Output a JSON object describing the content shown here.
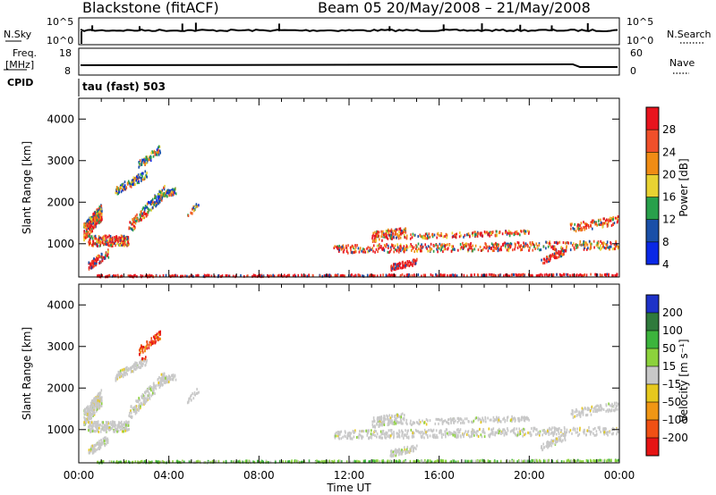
{
  "header": {
    "station": "Blackstone (fitACF)",
    "beam_and_dates": "Beam 05  20/May/2008 – 21/May/2008"
  },
  "nsky_panel": {
    "left_label": "N.Sky",
    "right_label": "N.Search",
    "left_ticks": [
      "10^5",
      "10^0"
    ],
    "right_ticks": [
      "10^5",
      "10^0"
    ]
  },
  "freq_panel": {
    "left_label_line1": "Freq.",
    "left_label_line2": "[MHz]",
    "cpid_label": "CPID",
    "right_label": "Nave",
    "left_ticks": [
      "18",
      "8"
    ],
    "right_ticks": [
      "60",
      "0"
    ]
  },
  "mode_label": "tau (fast) 503",
  "power_colorbar": {
    "title": "Power [dB]",
    "ticks": [
      "28",
      "24",
      "20",
      "16",
      "12",
      "8",
      "4"
    ],
    "colors": [
      "#e8141e",
      "#f0502a",
      "#f08c14",
      "#e8d232",
      "#28a04b",
      "#1a4fa8",
      "#0a28e6"
    ]
  },
  "velocity_colorbar": {
    "title": "Velocity [m s⁻¹]",
    "ticks": [
      "200",
      "100",
      "50",
      "15",
      "–15",
      "–50",
      "–100",
      "–200"
    ],
    "colors": [
      "#1e32c8",
      "#2f7a3c",
      "#3cb43c",
      "#8cd23c",
      "#c8c8c8",
      "#e6c81e",
      "#f09614",
      "#f05014",
      "#e61414"
    ]
  },
  "chart_data": [
    {
      "type": "heatmap",
      "title": "",
      "xlabel": "",
      "ylabel": "Slant Range [km]",
      "y_ticks": [
        "1000",
        "2000",
        "3000",
        "4000"
      ],
      "ylim": [
        200,
        4500
      ],
      "xlim_hours": [
        0,
        24
      ],
      "value_label": "Power [dB]"
    },
    {
      "type": "heatmap",
      "title": "",
      "xlabel": "Time UT",
      "ylabel": "Slant Range [km]",
      "x_ticks": [
        "00:00",
        "04:00",
        "08:00",
        "12:00",
        "16:00",
        "20:00",
        "00:00"
      ],
      "y_ticks": [
        "1000",
        "2000",
        "3000",
        "4000"
      ],
      "ylim": [
        200,
        4500
      ],
      "xlim_hours": [
        0,
        24
      ],
      "value_label": "Velocity [m s⁻¹]"
    }
  ]
}
